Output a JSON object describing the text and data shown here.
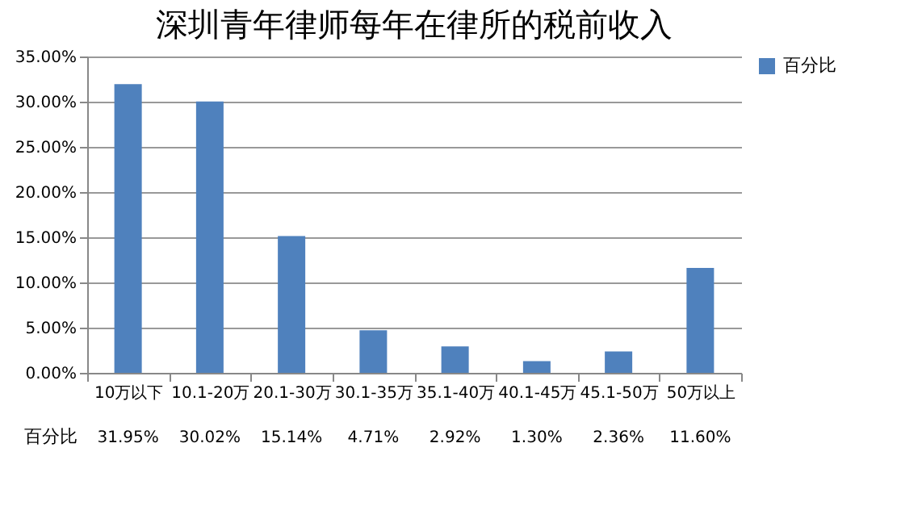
{
  "chart_data": {
    "type": "bar",
    "title": "深圳青年律师每年在律所的税前收入",
    "categories": [
      "10万以下",
      "10.1-20万",
      "20.1-30万",
      "30.1-35万",
      "35.1-40万",
      "40.1-45万",
      "45.1-50万",
      "50万以上"
    ],
    "series": [
      {
        "name": "百分比",
        "color": "#4f81bd",
        "values": [
          31.95,
          30.02,
          15.14,
          4.71,
          2.92,
          1.3,
          2.36,
          11.6
        ],
        "value_labels": [
          "31.95%",
          "30.02%",
          "15.14%",
          "4.71%",
          "2.92%",
          "1.30%",
          "2.36%",
          "11.60%"
        ]
      }
    ],
    "ylim": [
      0,
      35
    ],
    "yticks": [
      {
        "value": 0,
        "label": "0.00%"
      },
      {
        "value": 5,
        "label": "5.00%"
      },
      {
        "value": 10,
        "label": "10.00%"
      },
      {
        "value": 15,
        "label": "15.00%"
      },
      {
        "value": 20,
        "label": "20.00%"
      },
      {
        "value": 25,
        "label": "25.00%"
      },
      {
        "value": 30,
        "label": "30.00%"
      },
      {
        "value": 35,
        "label": "35.00%"
      }
    ],
    "grid": "y",
    "legend": "right"
  }
}
